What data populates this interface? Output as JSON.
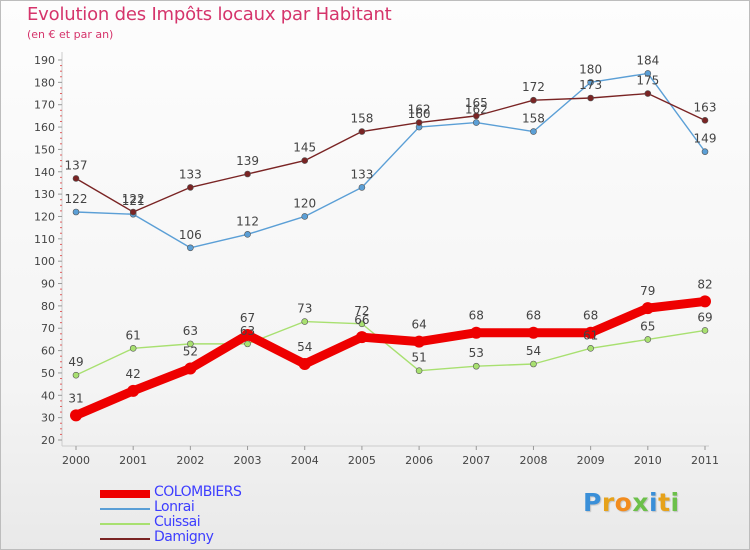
{
  "chart_data": {
    "type": "line",
    "title": "Evolution des Impôts locaux par Habitant",
    "subtitle": "(en € et par an)",
    "xlabel": "",
    "ylabel": "",
    "x": [
      "2000",
      "2001",
      "2002",
      "2003",
      "2004",
      "2005",
      "2006",
      "2007",
      "2008",
      "2009",
      "2010",
      "2011"
    ],
    "ylim": [
      20,
      190
    ],
    "yticks": [
      20,
      30,
      40,
      50,
      60,
      70,
      80,
      90,
      100,
      110,
      120,
      130,
      140,
      150,
      160,
      170,
      180,
      190
    ],
    "grid": false,
    "legend_position": "bottom-left",
    "series": [
      {
        "name": "COLOMBIERS",
        "color": "#ee0000",
        "bold": true,
        "label_color": "#3d3dff",
        "values": [
          31,
          42,
          52,
          67,
          54,
          66,
          64,
          68,
          68,
          68,
          79,
          82
        ]
      },
      {
        "name": "Lonrai",
        "color": "#5b9fd6",
        "label_color": "#3d3dff",
        "values": [
          122,
          121,
          106,
          112,
          120,
          133,
          160,
          162,
          158,
          180,
          184,
          149
        ]
      },
      {
        "name": "Cuissai",
        "color": "#a8e070",
        "label_color": "#3d3dff",
        "values": [
          49,
          61,
          63,
          63,
          73,
          72,
          51,
          53,
          54,
          61,
          65,
          69
        ]
      },
      {
        "name": "Damigny",
        "color": "#7a2424",
        "label_color": "#3d3dff",
        "values": [
          137,
          122,
          133,
          139,
          145,
          158,
          162,
          165,
          172,
          173,
          175,
          163
        ]
      }
    ],
    "value_labels": {
      "COLOMBIERS": [
        "31",
        "42",
        "52",
        "67",
        "54",
        "66",
        "64",
        "68",
        "68",
        "68",
        "79",
        "82"
      ],
      "Lonrai": [
        "122",
        "121",
        "106",
        "112",
        "120",
        "133",
        "160",
        "162",
        "158",
        "180",
        "184",
        "149"
      ],
      "Cuissai": [
        "49",
        "61",
        "63",
        "63",
        "73",
        "72",
        "51",
        "53",
        "54",
        "61",
        "65",
        "69"
      ],
      "Damigny": [
        "137",
        "122",
        "133",
        "139",
        "145",
        "158",
        "162",
        "165",
        "172",
        "173",
        "175",
        "163"
      ]
    }
  },
  "logo": {
    "letters": [
      "P",
      "r",
      "o",
      "x",
      "i",
      "t",
      "i"
    ],
    "colors": [
      "#3a8fd8",
      "#e6a21a",
      "#f28c1e",
      "#6cc04a",
      "#3a8fd8",
      "#e6a21a",
      "#6cc04a"
    ]
  }
}
